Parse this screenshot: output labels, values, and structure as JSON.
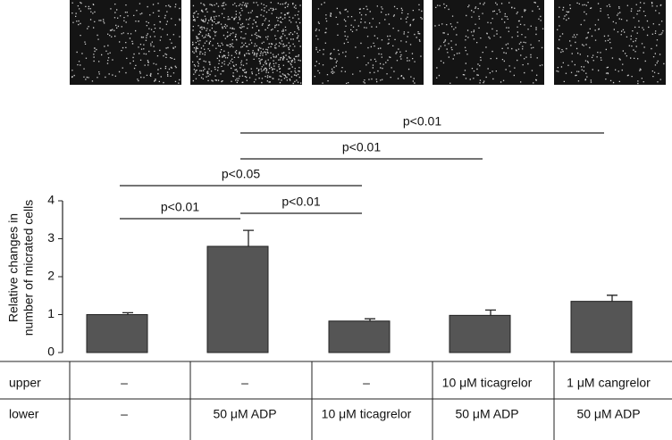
{
  "chart_data": {
    "type": "bar",
    "ylabel": [
      "Relative changes in",
      "number of micrated cells"
    ],
    "categories": [
      null,
      null,
      null,
      null,
      null
    ],
    "values": [
      1.0,
      2.8,
      0.83,
      0.98,
      1.35
    ],
    "errors": [
      0.05,
      0.42,
      0.06,
      0.14,
      0.16
    ],
    "color": "#555555",
    "ylim": [
      0,
      4
    ],
    "yticks": [
      0,
      1,
      2,
      3,
      4
    ],
    "annotations": [
      "p<0.01",
      "p<0.01",
      "p<0.05",
      "p<0.01",
      "p<0.01"
    ]
  },
  "table": {
    "row_labels": [
      "upper",
      "lower"
    ],
    "rows": [
      [
        "–",
        "–",
        "–",
        "10 μM ticagrelor",
        "1 μM cangrelor"
      ],
      [
        "–",
        "50 μM ADP",
        "10 μM ticagrelor",
        "50 μM ADP",
        "50 μM ADP"
      ]
    ]
  }
}
